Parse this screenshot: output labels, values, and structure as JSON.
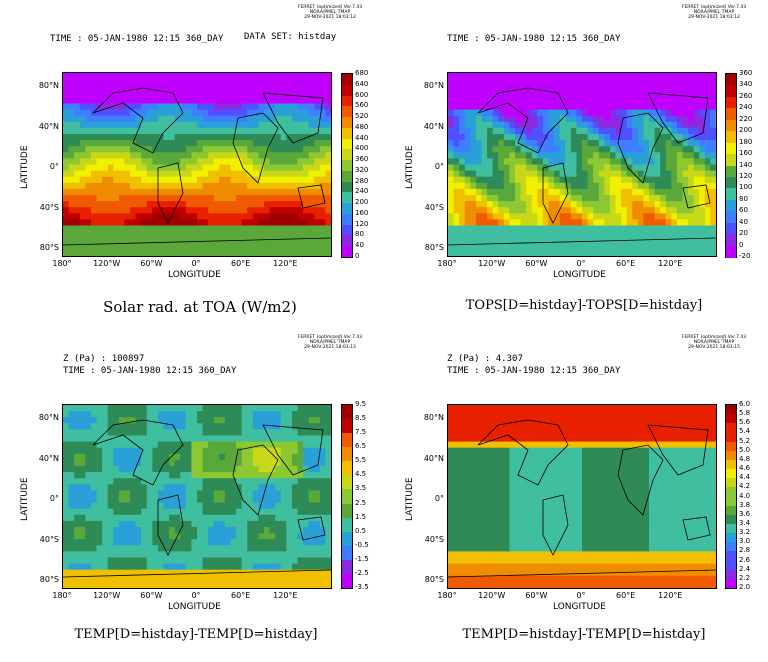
{
  "stamp": [
    "FERRET (optimized) Ver.7.43",
    "NOAA/PMEL TMAP",
    "29-NOV-2021 18:03:12"
  ],
  "stamp2": [
    "FERRET (optimized) Ver.7.43",
    "NOAA/PMEL TMAP",
    "29-NOV-2021 18:03:13"
  ],
  "stamp3": [
    "FERRET (optimized) Ver.7.43",
    "NOAA/PMEL TMAP",
    "29-NOV-2021 18:03:15"
  ],
  "xlabel": "LONGITUDE",
  "ylabel": "LATITUDE",
  "xticks": [
    "180°",
    "120°W",
    "60°W",
    "0°",
    "60°E",
    "120°E"
  ],
  "yticks": [
    "80°N",
    "40°N",
    "0°",
    "40°S",
    "80°S"
  ],
  "panels": [
    {
      "header1": "TIME : 05-JAN-1980 12:15 360_DAY",
      "header_extra": "DATA SET: histday",
      "title": "Solar rad. at TOA (W/m2)",
      "colorbar": [
        "680",
        "640",
        "600",
        "560",
        "520",
        "480",
        "440",
        "400",
        "360",
        "320",
        "280",
        "240",
        "200",
        "160",
        "120",
        "80",
        "40",
        "0"
      ]
    },
    {
      "header1": "TIME : 05-JAN-1980 12:15 360_DAY",
      "title": "TOPS[D=histday]-TOPS[D=histday]",
      "colorbar": [
        "360",
        "340",
        "260",
        "240",
        "220",
        "200",
        "180",
        "160",
        "140",
        "120",
        "100",
        "80",
        "60",
        "40",
        "20",
        "0",
        "-20"
      ]
    },
    {
      "header0": "Z (Pa) : 100897",
      "header1": "TIME : 05-JAN-1980 12:15 360_DAY",
      "title": "TEMP[D=histday]-TEMP[D=histday]",
      "colorbar": [
        "9.5",
        "8.5",
        "7.5",
        "6.5",
        "5.5",
        "4.5",
        "3.5",
        "2.5",
        "1.5",
        "0.5",
        "-0.5",
        "-1.5",
        "-2.5",
        "-3.5"
      ]
    },
    {
      "header0": "Z (Pa) : 4.307",
      "header1": "TIME : 05-JAN-1980 12:15 360_DAY",
      "title": "TEMP[D=histday]-TEMP[D=histday]",
      "colorbar": [
        "6.0",
        "5.8",
        "5.6",
        "5.4",
        "5.2",
        "5.0",
        "4.8",
        "4.6",
        "4.4",
        "4.2",
        "4.0",
        "3.8",
        "3.6",
        "3.4",
        "3.2",
        "3.0",
        "2.8",
        "2.6",
        "2.4",
        "2.2",
        "2.0"
      ]
    }
  ],
  "chart_data": [
    {
      "type": "heatmap",
      "title": "Solar rad. at TOA (W/m2)",
      "xlabel": "LONGITUDE",
      "ylabel": "LATITUDE",
      "xlim": [
        -180,
        180
      ],
      "ylim": [
        -90,
        90
      ],
      "zrange": [
        0,
        680
      ]
    },
    {
      "type": "heatmap",
      "title": "TOPS[D=histday]-TOPS[D=histday]",
      "xlabel": "LONGITUDE",
      "ylabel": "LATITUDE",
      "xlim": [
        -180,
        180
      ],
      "ylim": [
        -90,
        90
      ],
      "zrange": [
        -20,
        360
      ]
    },
    {
      "type": "heatmap",
      "title": "TEMP[D=histday]-TEMP[D=histday]",
      "xlabel": "LONGITUDE",
      "ylabel": "LATITUDE",
      "xlim": [
        -180,
        180
      ],
      "ylim": [
        -90,
        90
      ],
      "zrange": [
        -3.5,
        9.5
      ]
    },
    {
      "type": "heatmap",
      "title": "TEMP[D=histday]-TEMP[D=histday]",
      "xlabel": "LONGITUDE",
      "ylabel": "LATITUDE",
      "xlim": [
        -180,
        180
      ],
      "ylim": [
        -90,
        90
      ],
      "zrange": [
        2.0,
        6.0
      ]
    }
  ]
}
